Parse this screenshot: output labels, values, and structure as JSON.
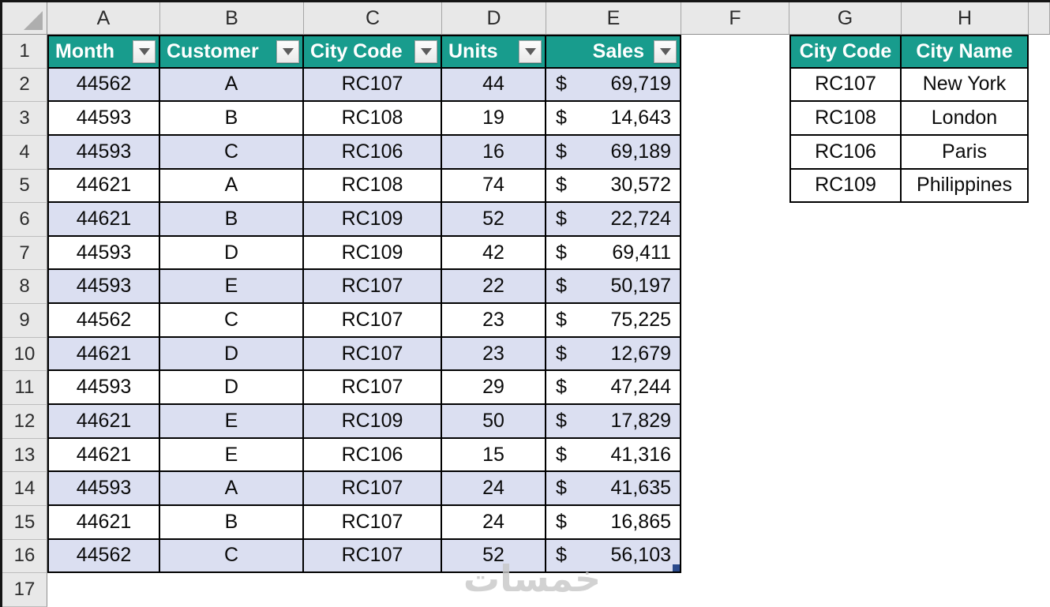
{
  "app": "excel-worksheet",
  "column_letters": [
    "A",
    "B",
    "C",
    "D",
    "E",
    "F",
    "G",
    "H",
    ""
  ],
  "row_numbers": [
    "1",
    "2",
    "3",
    "4",
    "5",
    "6",
    "7",
    "8",
    "9",
    "10",
    "11",
    "12",
    "13",
    "14",
    "15",
    "16",
    "17"
  ],
  "main_table": {
    "headers": [
      {
        "label": "Month"
      },
      {
        "label": "Customer"
      },
      {
        "label": "City Code"
      },
      {
        "label": "Units"
      },
      {
        "label": "Sales"
      }
    ],
    "currency_symbol": "$",
    "rows": [
      [
        "44562",
        "A",
        "RC107",
        "44",
        "69,719"
      ],
      [
        "44593",
        "B",
        "RC108",
        "19",
        "14,643"
      ],
      [
        "44593",
        "C",
        "RC106",
        "16",
        "69,189"
      ],
      [
        "44621",
        "A",
        "RC108",
        "74",
        "30,572"
      ],
      [
        "44621",
        "B",
        "RC109",
        "52",
        "22,724"
      ],
      [
        "44593",
        "D",
        "RC109",
        "42",
        "69,411"
      ],
      [
        "44593",
        "E",
        "RC107",
        "22",
        "50,197"
      ],
      [
        "44562",
        "C",
        "RC107",
        "23",
        "75,225"
      ],
      [
        "44621",
        "D",
        "RC107",
        "23",
        "12,679"
      ],
      [
        "44593",
        "D",
        "RC107",
        "29",
        "47,244"
      ],
      [
        "44621",
        "E",
        "RC109",
        "50",
        "17,829"
      ],
      [
        "44621",
        "E",
        "RC106",
        "15",
        "41,316"
      ],
      [
        "44593",
        "A",
        "RC107",
        "24",
        "41,635"
      ],
      [
        "44621",
        "B",
        "RC107",
        "24",
        "16,865"
      ],
      [
        "44562",
        "C",
        "RC107",
        "52",
        "56,103"
      ]
    ]
  },
  "lookup_table": {
    "headers": [
      "City Code",
      "City Name"
    ],
    "rows": [
      [
        "RC107",
        "New York"
      ],
      [
        "RC108",
        "London"
      ],
      [
        "RC106",
        "Paris"
      ],
      [
        "RC109",
        "Philippines"
      ]
    ]
  },
  "watermark": {
    "text": "خمسات"
  },
  "colors": {
    "header_teal": "#189c8d",
    "band_fill": "#dbdff1",
    "selection_handle": "#2b4a8c"
  }
}
